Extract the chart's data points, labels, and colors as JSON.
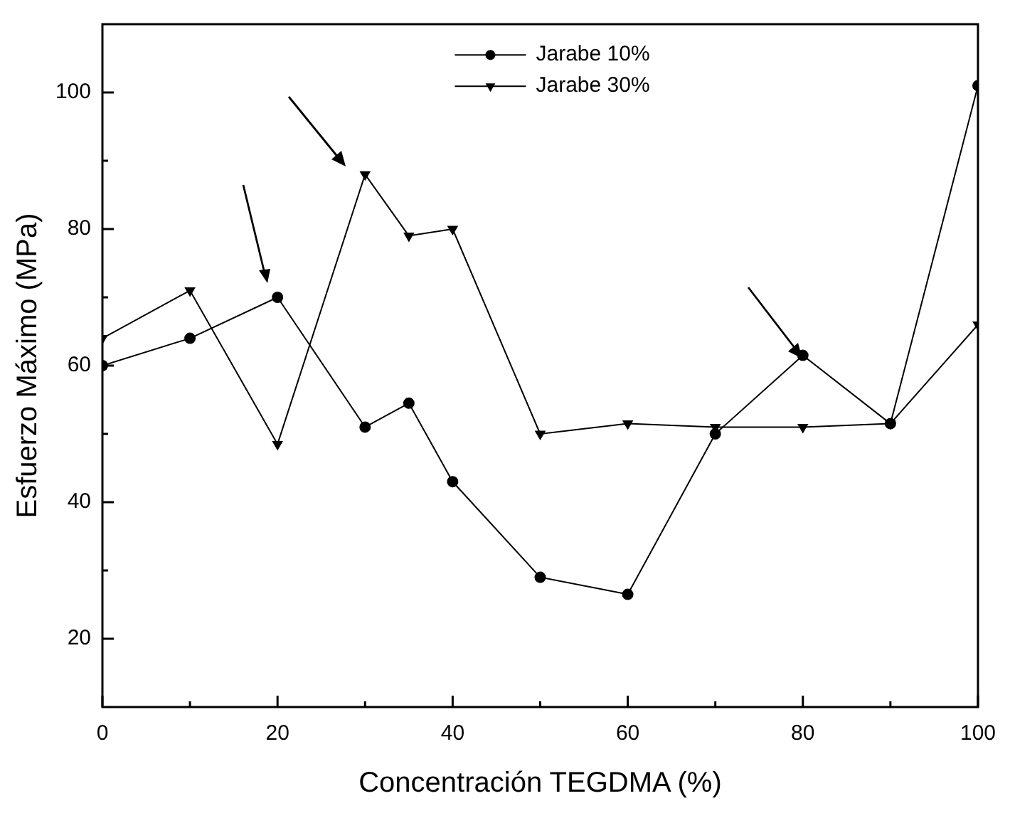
{
  "chart_data": {
    "type": "line",
    "xlabel": "Concentración TEGDMA (%)",
    "ylabel": "Esfuerzo Máximo (MPa)",
    "x": [
      0,
      10,
      20,
      30,
      35,
      40,
      50,
      60,
      70,
      80,
      90,
      100
    ],
    "series": [
      {
        "name": "Jarabe 10%",
        "color": "#000000",
        "marker": "circle",
        "values": [
          60,
          64,
          70,
          51,
          54.5,
          43,
          29,
          26.5,
          50,
          61.5,
          51.5,
          101
        ]
      },
      {
        "name": "Jarabe 30%",
        "color": "#000000",
        "marker": "triangle",
        "values": [
          64,
          71,
          48.5,
          88,
          79,
          80,
          50,
          51.5,
          51,
          51,
          51.5,
          66
        ]
      }
    ],
    "xlim": [
      0,
      100
    ],
    "xticks": [
      0,
      {
        "value": 10,
        "label": null
      },
      20,
      {
        "value": 30,
        "label": null
      },
      40,
      {
        "value": 50,
        "label": null
      },
      60,
      {
        "value": 70,
        "label": null
      },
      80,
      {
        "value": 90,
        "label": null
      },
      100
    ],
    "ylim": [
      10,
      110
    ],
    "yticks": [
      20,
      {
        "value": 30,
        "label": null
      },
      40,
      {
        "value": 50,
        "label": null
      },
      60,
      {
        "value": 70,
        "label": null
      },
      80,
      {
        "value": 90,
        "label": null
      },
      100
    ],
    "grid": false,
    "legend": "top",
    "line_style": "solid"
  }
}
